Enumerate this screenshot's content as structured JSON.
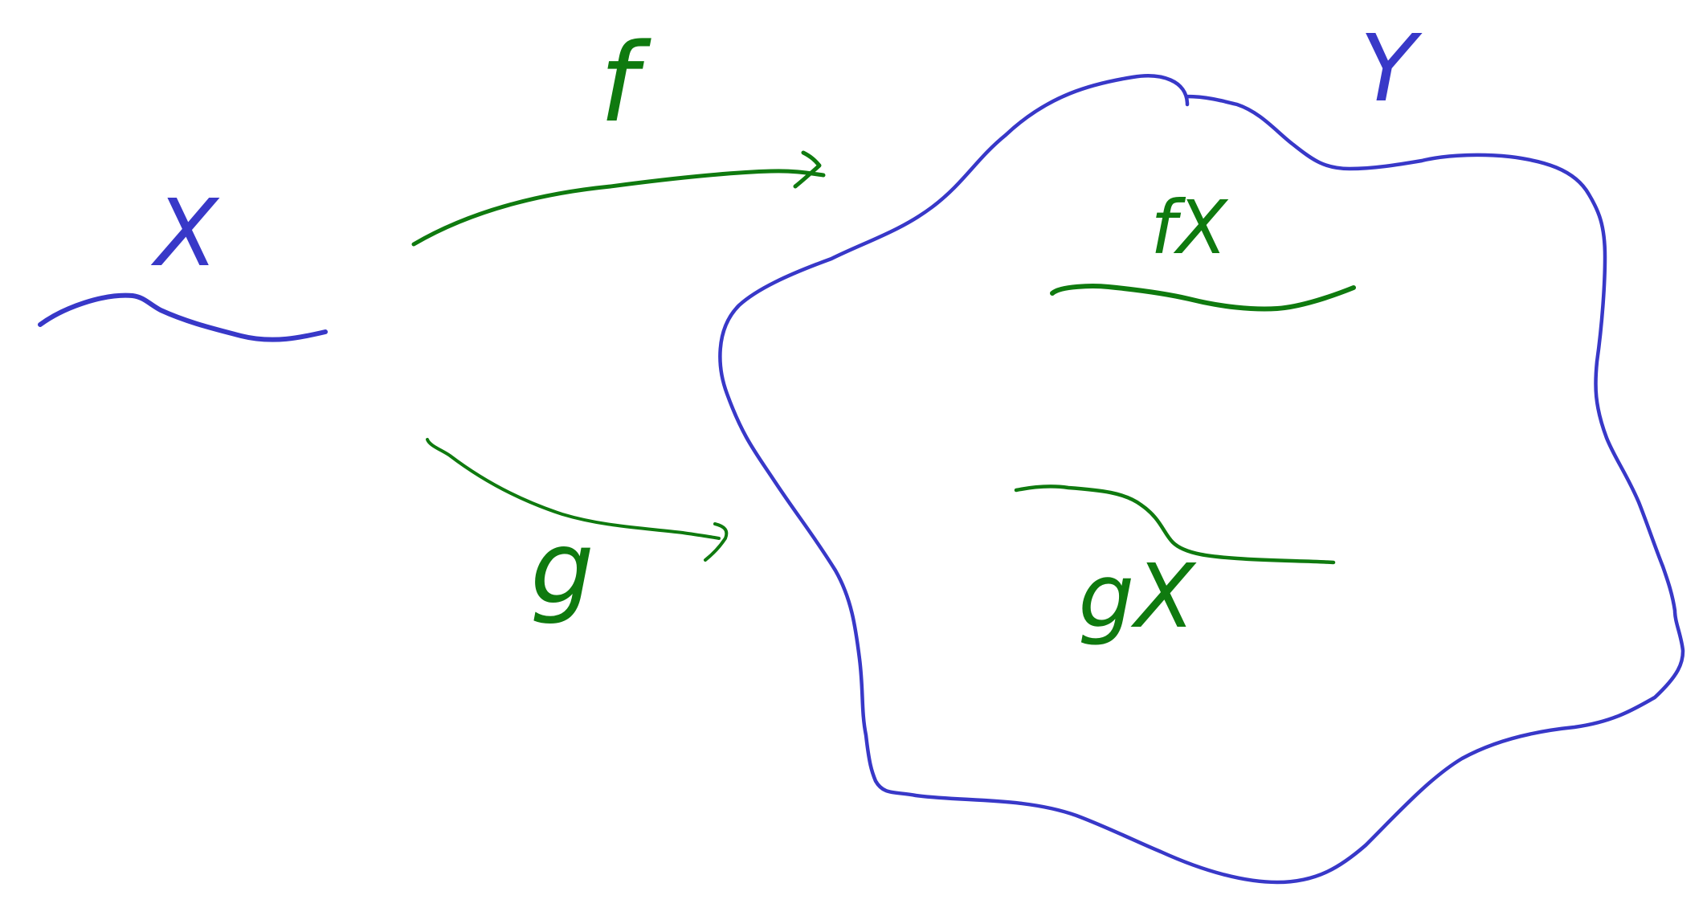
{
  "diagram": {
    "colors": {
      "space": "#3838c8",
      "map": "#0f7a0f",
      "background": "#ffffff"
    },
    "labels": {
      "domain": "X",
      "codomain": "Y",
      "map_f": "f",
      "map_g": "g",
      "image_f": "fX",
      "image_g": "gX"
    }
  }
}
